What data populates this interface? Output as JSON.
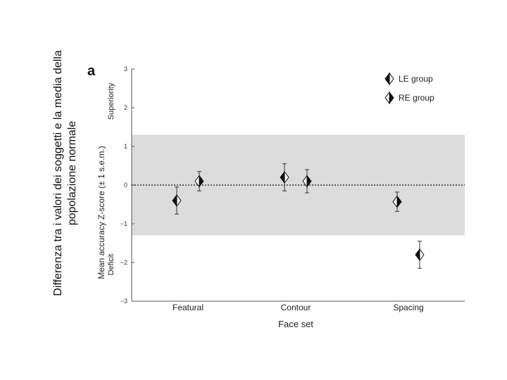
{
  "slide": {
    "side_title_line1": "Differenza tra i valori dei soggetti e la media della",
    "side_title_line2": "popolazione normale"
  },
  "chart_data": {
    "type": "scatter",
    "panel_label": "a",
    "categories": [
      "Featural",
      "Contour",
      "Spacing"
    ],
    "xlabel": "Face set",
    "ylabel": "Mean accuracy Z-score (± 1 s.e.m.)",
    "ylabel_top": "Superiority",
    "ylabel_bottom": "Deficit",
    "ylim": [
      -3,
      3
    ],
    "yticks": [
      3,
      2,
      1,
      0,
      -1,
      -2,
      -3
    ],
    "ytick_labels": [
      "3",
      "2",
      "1",
      "0",
      "−1",
      "−2",
      "−3"
    ],
    "normal_band": [
      -1.3,
      1.3
    ],
    "reference_line": 0,
    "series": [
      {
        "name": "LE group",
        "marker": "diamond-left-filled",
        "values": [
          -0.4,
          0.2,
          -1.8
        ],
        "errors": [
          0.35,
          0.35,
          0.35
        ]
      },
      {
        "name": "RE group",
        "marker": "diamond-right-filled",
        "values": [
          0.1,
          0.1,
          -0.43
        ],
        "errors": [
          0.25,
          0.3,
          0.25
        ]
      }
    ],
    "series_order_per_category": [
      [
        "LE group",
        "RE group"
      ],
      [
        "LE group",
        "RE group"
      ],
      [
        "RE group",
        "LE group"
      ]
    ],
    "legend_position": "top-right",
    "colors": {
      "band": "#dcdcdc",
      "marker": "#111111",
      "marker_fill": "#ffffff",
      "axis": "#555555"
    }
  }
}
